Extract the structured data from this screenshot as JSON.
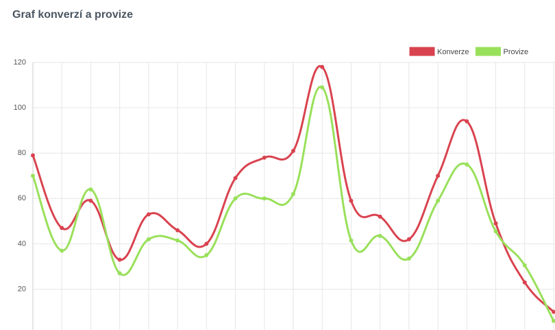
{
  "chart_data": {
    "type": "line",
    "title": "Graf konverzí a provize",
    "categories": [
      null,
      null,
      null,
      null,
      null,
      null,
      null,
      null,
      null,
      null,
      null,
      null,
      null,
      null,
      null,
      null,
      null,
      null,
      null
    ],
    "series": [
      {
        "name": "Konverze",
        "color": "#d9434f",
        "values": [
          79,
          47,
          59,
          33,
          53,
          46,
          40,
          69,
          78,
          81,
          118,
          59,
          52,
          42,
          70,
          94,
          49,
          23,
          10
        ]
      },
      {
        "name": "Provize",
        "color": "#99e05a",
        "values": [
          70,
          37,
          64,
          27,
          42,
          41.5,
          35,
          60,
          60,
          62,
          109,
          41.5,
          43.5,
          33.5,
          59,
          75,
          45.5,
          30.5,
          6
        ]
      }
    ],
    "ylim": [
      2,
      120
    ],
    "yticks": [
      20,
      40,
      60,
      80,
      100,
      120
    ],
    "grid": true,
    "legend": "top-right"
  }
}
